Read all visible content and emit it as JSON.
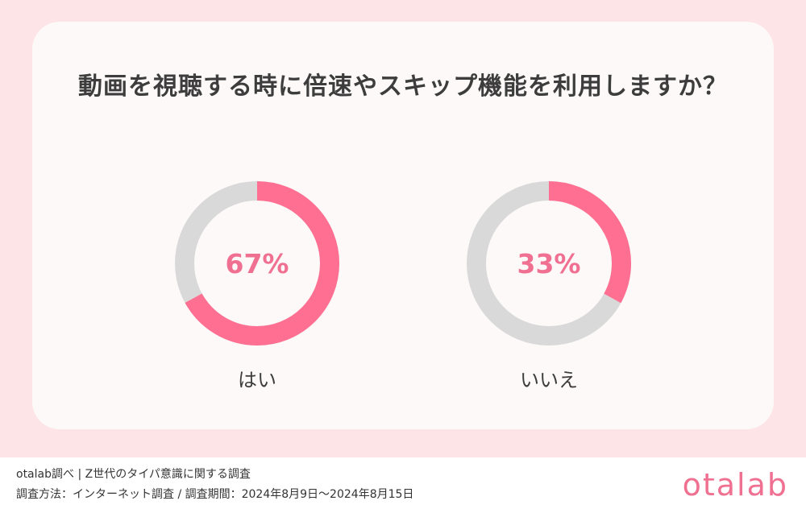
{
  "chart_data": {
    "type": "pie",
    "title": "動画を視聴する時に倍速やスキップ機能を利用しますか？",
    "categories": [
      "はい",
      "いいえ"
    ],
    "values": [
      67,
      33
    ],
    "unit": "%",
    "display": "donut",
    "colors": {
      "highlight": "#ff6f91",
      "remainder": "#d9d9d9",
      "label": "#f07091"
    },
    "value_labels": [
      "67%",
      "33%"
    ]
  },
  "footer": {
    "source_line": "otalab調べ | Z世代のタイパ意識に関する調査",
    "method_line": "調査方法：インターネット調査 / 調査期間：2024年8月9日〜2024年8月15日"
  },
  "brand": {
    "logo_text": "otalab",
    "color": "#f07091"
  },
  "background": {
    "band": "#fde4e6",
    "card": "#fdf9f9"
  }
}
